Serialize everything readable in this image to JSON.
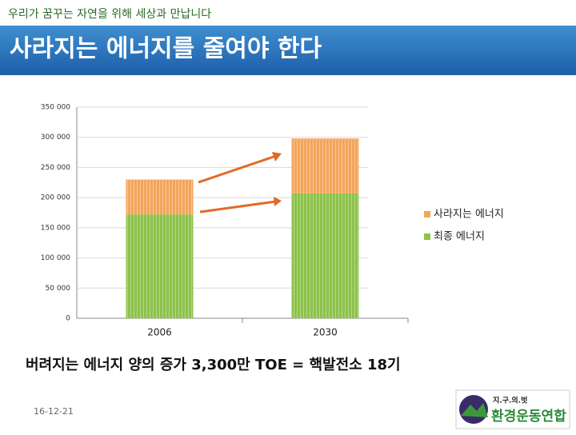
{
  "slide": {
    "tagline": "우리가 꿈꾸는 자연을 위해 세상과 만납니다",
    "title": "사라지는 에너지를 줄여야 한다",
    "caption": "버려지는 에너지 양의 증가 3,300만 TOE = 핵발전소 18기",
    "date": "16-12-21",
    "logo": {
      "motto": "지.구.의.벗",
      "name": "환경운동연합"
    }
  },
  "chart_data": {
    "type": "bar",
    "stacked": true,
    "categories": [
      "2006",
      "2030"
    ],
    "series": [
      {
        "name": "최종 에너지",
        "color": "#8cc34a",
        "values": [
          172000,
          207000
        ]
      },
      {
        "name": "사라지는 에너지",
        "color": "#f4a55c",
        "values": [
          58000,
          91000
        ]
      }
    ],
    "ylim": [
      0,
      350000
    ],
    "yticks": [
      0,
      {
        "value": 50000,
        "label": "50 000"
      },
      {
        "value": 100000,
        "label": "100 000"
      },
      {
        "value": 150000,
        "label": "150 000"
      },
      {
        "value": 200000,
        "label": "200 000"
      },
      {
        "value": 250000,
        "label": "250 000"
      },
      {
        "value": 300000,
        "label": "300 000"
      },
      {
        "value": 350000,
        "label": "350 000"
      }
    ],
    "grid": true,
    "legend": "right"
  }
}
